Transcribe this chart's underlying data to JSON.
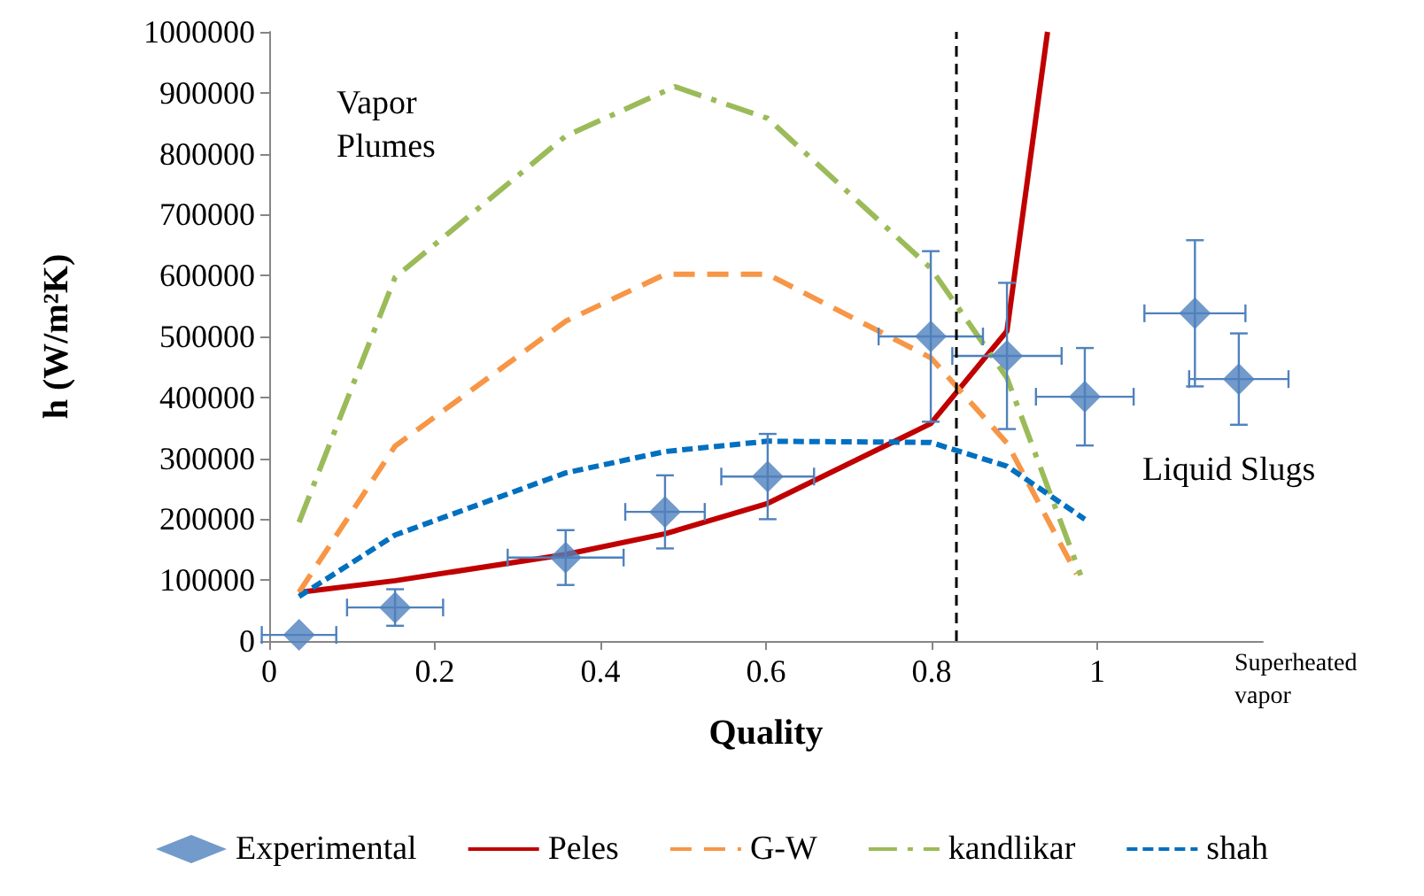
{
  "chart_data": {
    "type": "line",
    "xlabel": "Quality",
    "ylabel": "h (W/m²K)",
    "xlim": [
      0,
      1.2
    ],
    "xticks": [
      0,
      0.2,
      0.4,
      0.6,
      0.8,
      1
    ],
    "ylim": [
      0,
      1000000
    ],
    "yticks": [
      0,
      100000,
      200000,
      300000,
      400000,
      500000,
      600000,
      700000,
      800000,
      900000,
      1000000
    ],
    "grid": false,
    "legend": "bottom",
    "series": [
      {
        "name": "Experimental",
        "type": "scatter",
        "marker": "diamond",
        "color": "#4f81bd",
        "x": [
          0.036,
          0.152,
          0.358,
          0.478,
          0.602,
          0.799,
          0.891,
          0.985,
          1.118,
          1.171
        ],
        "values": [
          10000,
          55000,
          137000,
          212000,
          270000,
          500000,
          468000,
          401000,
          538000,
          430000
        ],
        "errors": [
          null,
          30000,
          45000,
          60000,
          70000,
          140000,
          120000,
          80000,
          120000,
          75000
        ],
        "xerrors": [
          0.045,
          0.058,
          0.07,
          0.048,
          0.056,
          0.063,
          0.066,
          0.059,
          0.061,
          0.06
        ]
      },
      {
        "name": "Peles",
        "line_style": "solid",
        "color": "#c00000",
        "x": [
          0.036,
          0.152,
          0.358,
          0.478,
          0.602,
          0.799,
          0.891,
          0.94
        ],
        "values": [
          80000,
          99000,
          142000,
          176000,
          226000,
          357000,
          509000,
          1000000
        ]
      },
      {
        "name": "G-W",
        "line_style": "dashed",
        "color": "#f79646",
        "x": [
          0.036,
          0.152,
          0.358,
          0.478,
          0.602,
          0.799,
          0.891,
          0.975
        ],
        "values": [
          80000,
          320000,
          525000,
          602000,
          602000,
          465000,
          325000,
          110000
        ]
      },
      {
        "name": "kandlikar",
        "line_style": "dashdot",
        "color": "#9bbb59",
        "x": [
          0.036,
          0.152,
          0.358,
          0.49,
          0.602,
          0.799,
          0.891,
          0.98
        ],
        "values": [
          195000,
          597000,
          829000,
          910000,
          858000,
          612000,
          432000,
          108000
        ]
      },
      {
        "name": "shah",
        "line_style": "dotted",
        "color": "#0070c0",
        "x": [
          0.036,
          0.152,
          0.358,
          0.478,
          0.602,
          0.799,
          0.891,
          0.985
        ],
        "values": [
          73000,
          174000,
          276000,
          311000,
          328000,
          326000,
          287000,
          200000
        ]
      }
    ],
    "ref_lines": [
      {
        "axis": "x",
        "value": 0.833,
        "color": "#000000",
        "line_style": "dashed"
      }
    ],
    "annotations": [
      "Vapor Plumes",
      "Liquid Slugs",
      "Superheated vapor"
    ]
  }
}
